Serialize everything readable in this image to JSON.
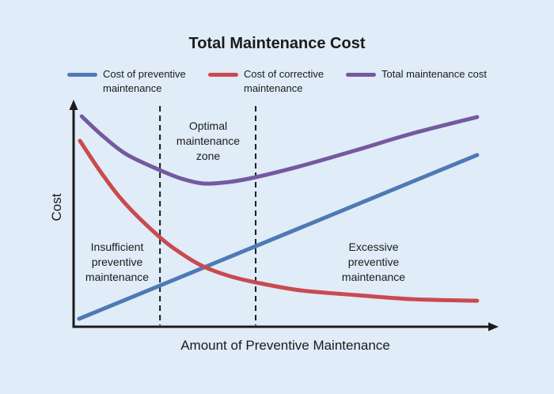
{
  "title": "Total Maintenance Cost",
  "colors": {
    "background": "#e0ecf7",
    "axis": "#1b1b1b",
    "text": "#1b1b1b",
    "preventive_line": "#4e79b4",
    "corrective_line": "#c94a50",
    "total_line": "#75599f"
  },
  "legend": {
    "items": [
      {
        "label": "Cost of preventive\nmaintenance",
        "color": "#4e79b4"
      },
      {
        "label": "Cost of corrective\nmaintenance",
        "color": "#c94a50"
      },
      {
        "label": "Total maintenance cost",
        "color": "#75599f"
      }
    ]
  },
  "axes": {
    "x_label": "Amount of Preventive Maintenance",
    "y_label": "Cost"
  },
  "annotations": {
    "optimal_zone": "Optimal\nmaintenance\nzone",
    "insufficient": "Insufficient\npreventive\nmaintenance",
    "excessive": "Excessive\npreventive\nmaintenance"
  },
  "chart_data": {
    "type": "line",
    "title": "Total Maintenance Cost",
    "xlabel": "Amount of Preventive Maintenance",
    "ylabel": "Cost",
    "x_range": [
      0,
      100
    ],
    "y_range": [
      0,
      100
    ],
    "tick_labels": "none (conceptual diagram; both axes end in arrows)",
    "grid": false,
    "legend_position": "top",
    "series": [
      {
        "name": "Cost of preventive maintenance",
        "color": "#4e79b4",
        "shape": "linear increasing",
        "points": [
          [
            1.3,
            3.5
          ],
          [
            95.3,
            75.9
          ]
        ]
      },
      {
        "name": "Cost of corrective maintenance",
        "color": "#c94a50",
        "shape": "exponential decay",
        "points": [
          [
            1.5,
            82.2
          ],
          [
            6.9,
            67.1
          ],
          [
            12.5,
            53.8
          ],
          [
            20.4,
            39.5
          ],
          [
            25.6,
            32.2
          ],
          [
            30.7,
            26.6
          ],
          [
            36.8,
            22.4
          ],
          [
            43,
            19.6
          ],
          [
            53.6,
            16.1
          ],
          [
            66.7,
            14
          ],
          [
            79.8,
            12.2
          ],
          [
            95.3,
            11.5
          ]
        ]
      },
      {
        "name": "Total maintenance cost",
        "color": "#75599f",
        "shape": "u-curve with minimum in optimal zone",
        "points": [
          [
            1.9,
            93
          ],
          [
            6.9,
            84.3
          ],
          [
            12.5,
            76.2
          ],
          [
            20.4,
            69.2
          ],
          [
            25.6,
            65.4
          ],
          [
            30.8,
            63.3
          ],
          [
            36.8,
            64
          ],
          [
            43,
            66.1
          ],
          [
            53.6,
            71
          ],
          [
            66.7,
            78
          ],
          [
            79.8,
            85.3
          ],
          [
            95.3,
            92.7
          ]
        ]
      }
    ],
    "zone_boundaries_x": [
      20.4,
      43
    ],
    "zone_boundary_style": "black dashed vertical lines marking the optimal maintenance zone"
  }
}
